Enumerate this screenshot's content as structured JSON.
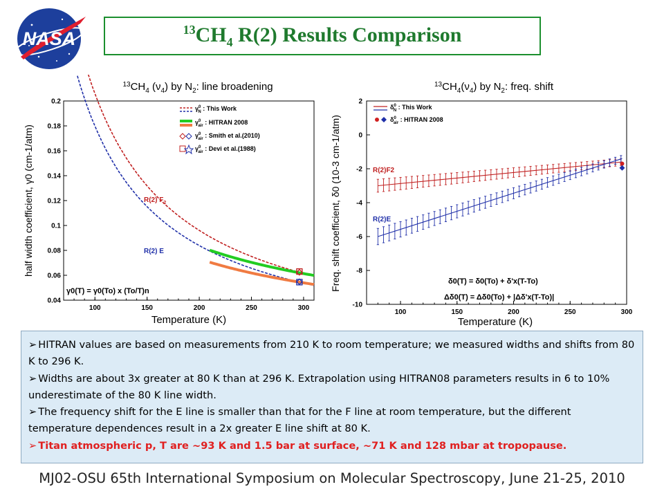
{
  "logo": {
    "text": "NASA"
  },
  "title": {
    "iso": "13",
    "base": "CH",
    "sub": "4",
    "rest": " R(2) Results Comparison"
  },
  "chart_data": [
    {
      "type": "line",
      "title_parts": {
        "iso": "13",
        "mol": "CH",
        "sub": "4",
        "mode_open": " (",
        "nu": "ν",
        "nu_sub": "4",
        "mode_close": ") by N",
        "n_sub": "2",
        "rest": ": line broadening"
      },
      "xlabel": "Temperature (K)",
      "ylabel": "half width coefficient, γ0 (cm-1/atm)",
      "xlim": [
        70,
        310
      ],
      "ylim": [
        0.04,
        0.2
      ],
      "x_ticks": [
        100,
        150,
        200,
        250,
        300
      ],
      "y_ticks": [
        0.04,
        0.06,
        0.08,
        0.1,
        0.12,
        0.14,
        0.16,
        0.18,
        0.2
      ],
      "y_tick_labels": [
        "0.04",
        "0.06",
        "0.08",
        "0.1",
        "0.12",
        "0.14",
        "0.16",
        "0.18",
        "0.2"
      ],
      "T0": 296,
      "series": [
        {
          "name": "This Work",
          "label": "R(2) F2",
          "label_main": "R(2) F",
          "label_sub": "2",
          "gamma0": 0.0624,
          "n": 1.1,
          "x_range": [
            80,
            310
          ],
          "color": "#c02020"
        },
        {
          "name": "This Work",
          "label": "R(2) E",
          "gamma0": 0.0545,
          "n": 1.1,
          "x_range": [
            80,
            310
          ],
          "color": "#1f2fa8"
        },
        {
          "name": "HITRAN 2008",
          "gamma0": 0.062,
          "n": 0.75,
          "x_range": [
            210,
            310
          ],
          "color": "#22cc22"
        },
        {
          "name": "HITRAN 2008",
          "gamma0": 0.0545,
          "n": 0.75,
          "x_range": [
            210,
            310
          ],
          "color": "#f07b42"
        }
      ],
      "points": [
        {
          "name": "Smith et al.(2010)",
          "x": 296,
          "y": 0.0624,
          "marker": "diamond",
          "color": "#c02020"
        },
        {
          "name": "Smith et al.(2010)",
          "x": 296,
          "y": 0.0548,
          "marker": "diamond",
          "color": "#1f2fa8"
        },
        {
          "name": "Devi et al.(1988)",
          "x": 296,
          "y": 0.063,
          "marker": "square",
          "color": "#c02020"
        },
        {
          "name": "Devi et al.(1988)",
          "x": 296,
          "y": 0.0545,
          "marker": "square",
          "color": "#1f2fa8"
        }
      ],
      "legend": [
        {
          "sym": "γ",
          "sup": "0",
          "sub": "N",
          "label": ": This Work"
        },
        {
          "sym": "γ",
          "sup": "0",
          "sub": "air",
          "label": ": HITRAN 2008"
        },
        {
          "sym": "γ",
          "sup": "0",
          "sub": "air",
          "label": ": Smith et al.(2010)"
        },
        {
          "sym": "γ",
          "sup": "0",
          "sub": "air",
          "label": ": Devi et al.(1988)"
        }
      ],
      "formula": "γ0(T) = γ0(To) x (To/T)n"
    },
    {
      "type": "line",
      "title_parts": {
        "iso": "13",
        "mol": "CH",
        "sub": "4",
        "mode_open": "(",
        "nu": "ν",
        "nu_sub": "4",
        "mode_close": ") by N",
        "n_sub": "2",
        "rest": ": freq. shift"
      },
      "xlabel": "Temperature (K)",
      "ylabel": "Freq. shift coefficient, δ0 (10-3 cm-1/atm)",
      "xlim": [
        70,
        300
      ],
      "ylim": [
        -10,
        2
      ],
      "x_ticks": [
        100,
        150,
        200,
        250,
        300
      ],
      "y_ticks": [
        -10,
        -8,
        -6,
        -4,
        -2,
        0,
        2
      ],
      "y_tick_labels": [
        "-10",
        "-8",
        "-6",
        "-4",
        "-2",
        "0",
        "2"
      ],
      "series": [
        {
          "name": "This Work",
          "label": "R(2)F2",
          "x_range": [
            80,
            296
          ],
          "y_range": [
            -3.0,
            -1.6
          ],
          "err": [
            0.38,
            0.2
          ],
          "color": "#c02020"
        },
        {
          "name": "This Work",
          "label": "R(2)E",
          "x_range": [
            80,
            296
          ],
          "y_range": [
            -6.0,
            -1.4
          ],
          "err": [
            0.48,
            0.2
          ],
          "color": "#1f2fa8"
        }
      ],
      "points": [
        {
          "name": "HITRAN 2008",
          "x": 296,
          "y": -1.7,
          "color": "#d02020"
        },
        {
          "name": "HITRAN 2008",
          "x": 296,
          "y": -1.95,
          "color": "#1f2fa8"
        }
      ],
      "legend": [
        {
          "sym": "δ",
          "sup": "0",
          "sub": "N",
          "label": ": This Work"
        },
        {
          "sym": "δ",
          "sup": "0",
          "sub": "air",
          "label": ": HITRAN 2008"
        }
      ],
      "formula1": "δ0(T) = δ0(To) + δ'x(T-To)",
      "formula2": "Δδ0(T) = Δδ0(To) + |Δδ'x(T-To)|"
    }
  ],
  "bullets": [
    "HITRAN values are based on measurements from 210 K to room temperature; we measured widths and shifts from 80 K to 296 K.",
    "Widths are about 3x greater at 80 K than at 296 K. Extrapolation using HITRAN08 parameters results in 6 to 10% underestimate of the 80 K line width.",
    "The frequency shift for the E line is smaller than that for the F line at room temperature, but the different temperature dependences result in a 2x greater E line shift at 80 K.",
    "Titan atmospheric p, T are ~93 K and 1.5 bar at surface, ~71 K and 128 mbar at tropopause."
  ],
  "footer": "MJ02-OSU 65th International Symposium on Molecular Spectroscopy, June 21-25, 2010"
}
